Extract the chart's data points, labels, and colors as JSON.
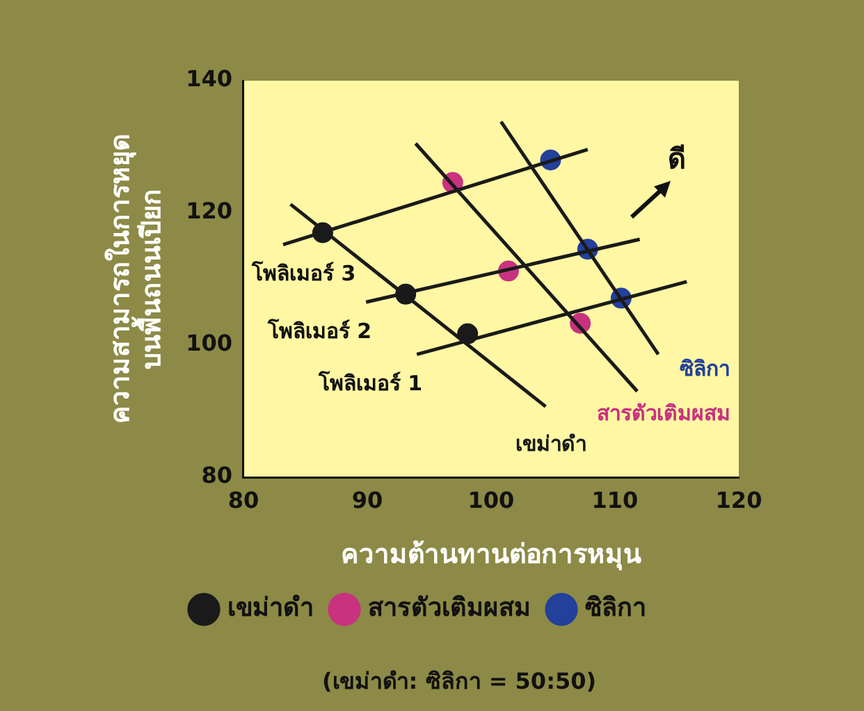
{
  "chart_data": {
    "type": "scatter",
    "xlabel": "ความต้านทานต่อการหมุน",
    "ylabel": "ความสามารถในการหยุด\nบนพื้นถนนเปียก",
    "xlim": [
      80,
      120
    ],
    "xticks": [
      80,
      90,
      100,
      110,
      120
    ],
    "ylim": [
      80,
      140
    ],
    "yticks": [
      80,
      100,
      120,
      140
    ],
    "grid": false,
    "legend": "bottom",
    "annotations": [
      "ดี",
      "(เขม่าดำ: ซิลิกา = 50:50)"
    ],
    "series": [
      {
        "type": "line",
        "marker": "none",
        "name": "โพลิเมอร์ 3",
        "color": "#1a1a1a",
        "x": [
          83.2,
          107.8
        ],
        "values": [
          115.2,
          129.6
        ]
      },
      {
        "type": "line",
        "marker": "none",
        "name": "โพลิเมอร์ 2",
        "color": "#1a1a1a",
        "x": [
          89.9,
          112.0
        ],
        "values": [
          106.5,
          116.0
        ]
      },
      {
        "type": "line",
        "marker": "none",
        "name": "โพลิเมอร์ 1",
        "color": "#1a1a1a",
        "x": [
          94.0,
          115.8
        ],
        "values": [
          98.6,
          109.6
        ]
      },
      {
        "type": "line",
        "marker": "none",
        "color": "#1a1a1a",
        "x": [
          83.8,
          104.4
        ],
        "values": [
          121.3,
          90.7
        ]
      },
      {
        "type": "line",
        "marker": "none",
        "color": "#1a1a1a",
        "x": [
          93.9,
          111.8
        ],
        "values": [
          130.5,
          93.0
        ]
      },
      {
        "type": "line",
        "marker": "none",
        "color": "#1a1a1a",
        "x": [
          100.8,
          113.5
        ],
        "values": [
          133.8,
          98.6
        ]
      },
      {
        "type": "scatter",
        "marker": "circle",
        "name": "เขม่าดำ",
        "color": "#1a1a1a",
        "x": [
          86.4,
          93.1,
          98.1
        ],
        "values": [
          117.0,
          107.7,
          101.7
        ]
      },
      {
        "type": "scatter",
        "marker": "circle",
        "name": "สารตัวเติมผสม",
        "color": "#c8327f",
        "x": [
          96.9,
          101.4,
          107.2
        ],
        "values": [
          124.6,
          111.2,
          103.3
        ]
      },
      {
        "type": "scatter",
        "marker": "circle",
        "name": "ซิลิกา",
        "color": "#23409a",
        "x": [
          104.8,
          107.8,
          110.5
        ],
        "values": [
          128.0,
          114.5,
          107.1
        ]
      }
    ]
  }
}
